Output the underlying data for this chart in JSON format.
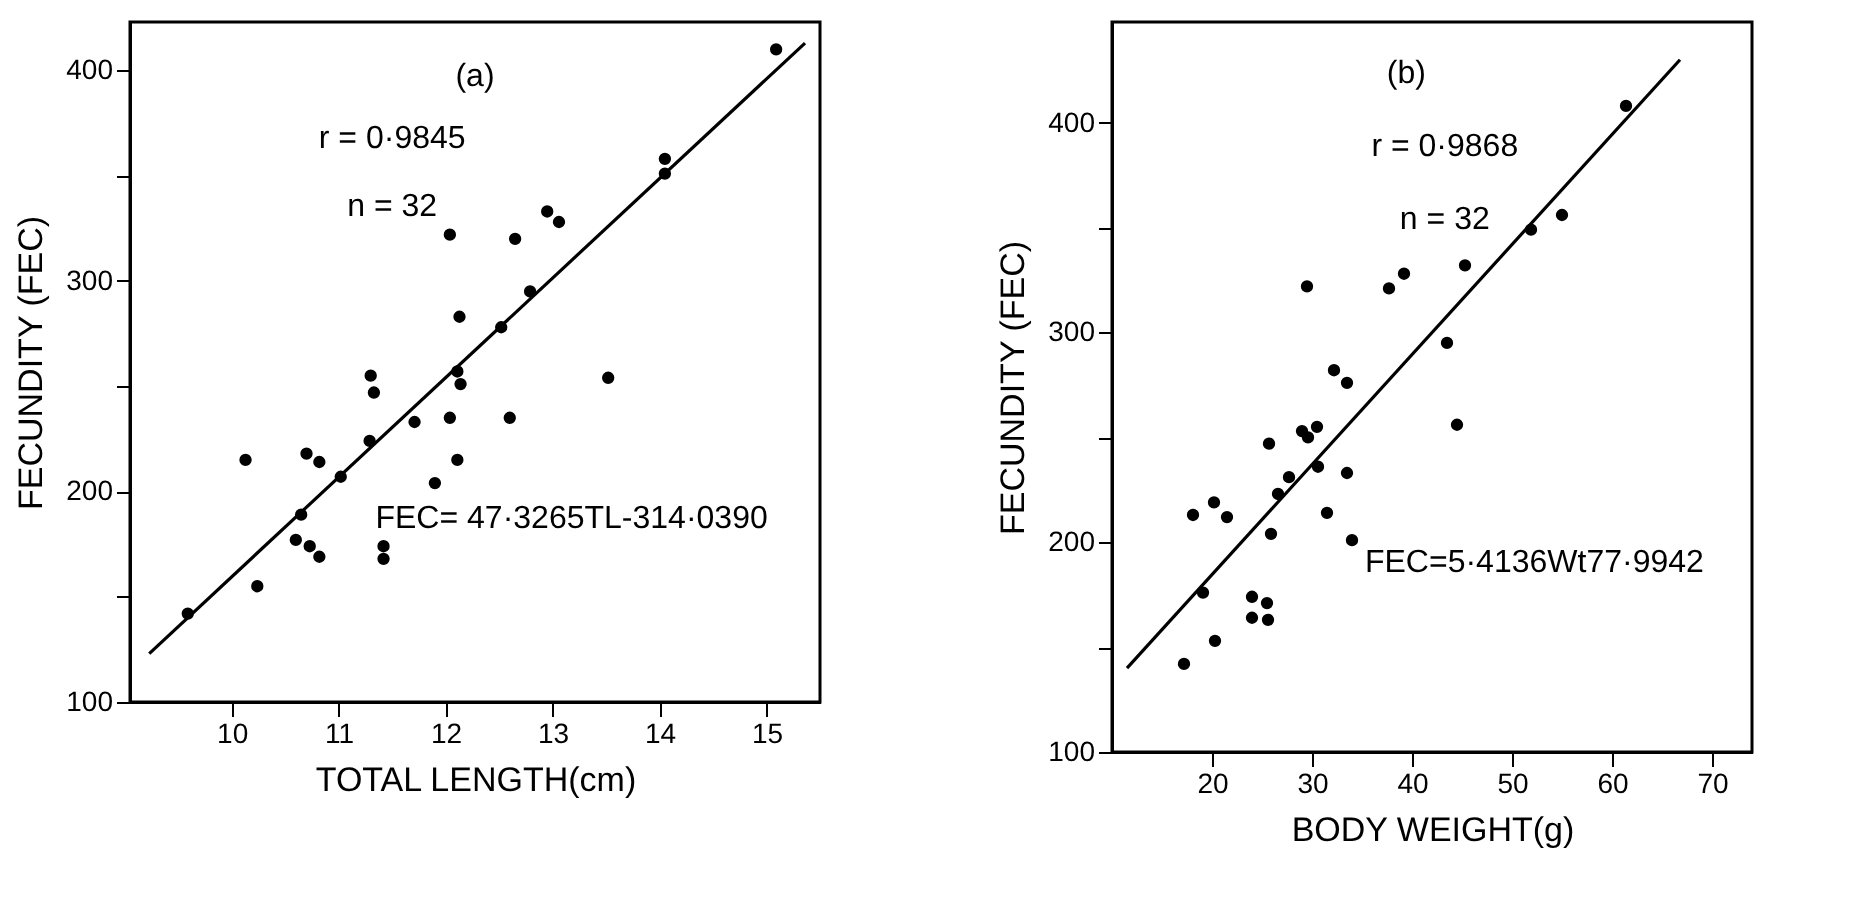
{
  "chart_data": [
    {
      "type": "scatter",
      "xlabel": "TOTAL LENGTH(cm)",
      "ylabel": "FECUNDITY (FEC)",
      "annotations": [
        "(a)",
        "r = 0·9845",
        "n = 32",
        "FEC= 47·3265TL-314·0390"
      ],
      "xlim": [
        9.05,
        15.5
      ],
      "xticks": [
        10,
        11,
        12,
        13,
        14,
        15
      ],
      "ylim": [
        100,
        423
      ],
      "yticks": [
        100,
        {
          "value": 150,
          "label": null
        },
        200,
        {
          "value": 250,
          "label": null
        },
        300,
        {
          "value": 350,
          "label": null
        },
        400
      ],
      "grid": false,
      "series": [
        {
          "color": "#000000",
          "marker": "circle",
          "x": [
            9.59,
            10.13,
            10.24,
            10.6,
            10.65,
            10.7,
            10.73,
            10.82,
            10.82,
            11.02,
            11.29,
            11.3,
            11.33,
            11.42,
            11.42,
            11.71,
            11.9,
            12.04,
            12.04,
            12.11,
            12.13,
            12.11,
            12.14,
            12.52,
            12.6,
            12.65,
            12.79,
            12.95,
            13.06,
            13.52,
            14.05,
            14.05,
            15.09
          ],
          "values": [
            142,
            215,
            155,
            177,
            189,
            218,
            174,
            214,
            169,
            207,
            224,
            255,
            247,
            174,
            168,
            233,
            204,
            235,
            322,
            215,
            283,
            257,
            251,
            278,
            235,
            320,
            295,
            333,
            328,
            254,
            358,
            351,
            410
          ]
        },
        {
          "type": "line",
          "color": "#000000",
          "marker": "none",
          "line_style": "solid",
          "x": [
            9.23,
            15.36
          ],
          "values": [
            123,
            413
          ]
        }
      ]
    },
    {
      "type": "scatter",
      "xlabel": "BODY WEIGHT(g)",
      "ylabel": "FECUNDITY (FEC)",
      "annotations": [
        "(b)",
        "r = 0·9868",
        "n = 32",
        "FEC=5·4136Wt77·9942"
      ],
      "xlim": [
        10,
        74
      ],
      "xticks": [
        20,
        30,
        40,
        50,
        60,
        70
      ],
      "ylim": [
        100,
        448
      ],
      "yticks": [
        100,
        {
          "value": 150,
          "label": null
        },
        200,
        {
          "value": 250,
          "label": null
        },
        300,
        {
          "value": 350,
          "label": null
        },
        400
      ],
      "grid": false,
      "series": [
        {
          "color": "#000000",
          "marker": "circle",
          "x": [
            17.2,
            18.1,
            19.1,
            20.2,
            20.3,
            21.5,
            24.0,
            24.0,
            25.5,
            25.6,
            25.7,
            25.9,
            26.6,
            27.7,
            29.5,
            29.0,
            29.6,
            30.5,
            30.6,
            31.5,
            32.2,
            33.5,
            33.5,
            34.0,
            37.7,
            39.2,
            43.5,
            44.5,
            45.3,
            51.9,
            55.0,
            61.4
          ],
          "values": [
            142,
            213,
            176,
            219,
            153,
            212,
            174,
            164,
            171,
            163,
            247,
            204,
            223,
            231,
            322,
            253,
            250,
            255,
            236,
            214,
            282,
            276,
            233,
            201,
            321,
            328,
            295,
            256,
            332,
            349,
            356,
            408
          ]
        },
        {
          "type": "line",
          "color": "#000000",
          "marker": "none",
          "line_style": "solid",
          "x": [
            11.5,
            66.8
          ],
          "values": [
            140,
            430
          ]
        }
      ]
    }
  ]
}
